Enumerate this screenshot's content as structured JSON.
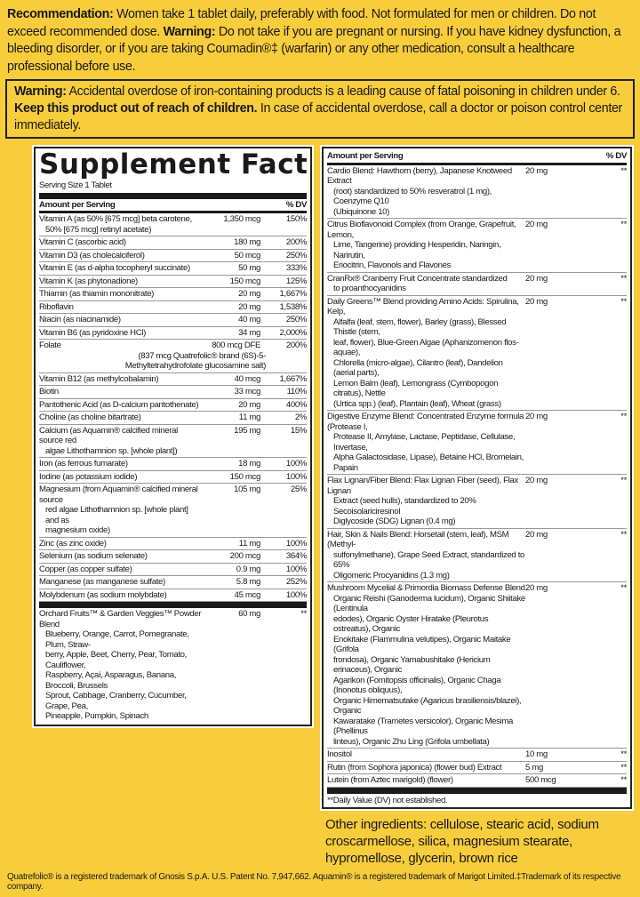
{
  "recommendation": {
    "label": "Recommendation:",
    "text": " Women take 1 tablet daily, preferably with food. Not formulated for men or children. Do not exceed recommended dose. ",
    "warning_label": "Warning:",
    "warning_text": " Do not take if you are pregnant or nursing. If you have kidney dysfunction, a bleeding disorder, or if you are taking Coumadin®‡ (warfarin) or any other medication, consult a healthcare professional before use."
  },
  "iron_warning": {
    "label": "Warning:",
    "text1": " Accidental overdose of iron-containing products is a leading cause of fatal poisoning in children under 6. ",
    "bold": "Keep this product out of reach of children.",
    "text2": " In case of accidental overdose, call a doctor or poison control center immediately."
  },
  "facts": {
    "title": "Supplement Facts",
    "serving": "Serving Size 1 Tablet",
    "amount_header": "Amount per Serving",
    "dv_header": "% DV"
  },
  "left_rows": [
    {
      "name": [
        "Vitamin A (as 50% [675 mcg] beta carotene,",
        "50% [675 mcg] retinyl acetate)"
      ],
      "amount": "1,350 mcg",
      "dv": "150%"
    },
    {
      "name": [
        "Vitamin C (ascorbic acid)"
      ],
      "amount": "180 mg",
      "dv": "200%"
    },
    {
      "name": [
        "Vitamin D3 (as cholecalciferol)"
      ],
      "amount": "50 mcg",
      "dv": "250%"
    },
    {
      "name": [
        "Vitamin E (as d-alpha tocopheryl succinate)"
      ],
      "amount": "50 mg",
      "dv": "333%"
    },
    {
      "name": [
        "Vitamin K (as phytonadione)"
      ],
      "amount": "150 mcg",
      "dv": "125%"
    },
    {
      "name": [
        "Thiamin (as thiamin mononitrate)"
      ],
      "amount": "20 mg",
      "dv": "1,667%"
    },
    {
      "name": [
        "Riboflavin"
      ],
      "amount": "20 mg",
      "dv": "1,538%"
    },
    {
      "name": [
        "Niacin (as niacinamide)"
      ],
      "amount": "40 mg",
      "dv": "250%"
    },
    {
      "name": [
        "Vitamin B6 (as pyridoxine HCl)"
      ],
      "amount": "34 mg",
      "dv": "2,000%"
    },
    {
      "name": [
        "Folate"
      ],
      "amount": "800 mcg DFE",
      "dv": "200%",
      "sub": [
        "(837 mcg Quatrefolic® brand (6S)-5-",
        "Methyltetrahydrofolate glucosamine salt)"
      ]
    },
    {
      "name": [
        "Vitamin B12 (as methylcobalamin)"
      ],
      "amount": "40 mcg",
      "dv": "1,667%"
    },
    {
      "name": [
        "Biotin"
      ],
      "amount": "33 mcg",
      "dv": "110%"
    },
    {
      "name": [
        "Pantothenic Acid (as D-calcium pantothenate)"
      ],
      "amount": "20 mg",
      "dv": "400%"
    },
    {
      "name": [
        "Choline (as choline bitartrate)"
      ],
      "amount": "11 mg",
      "dv": "2%"
    },
    {
      "name": [
        "Calcium (as Aquamin® calcified mineral source red",
        "algae Lithothamnion sp. [whole plant])"
      ],
      "amount": "195 mg",
      "dv": "15%"
    },
    {
      "name": [
        "Iron (as ferrous fumarate)"
      ],
      "amount": "18 mg",
      "dv": "100%"
    },
    {
      "name": [
        "Iodine (as potassium iodide)"
      ],
      "amount": "150 mcg",
      "dv": "100%"
    },
    {
      "name": [
        "Magnesium (from Aquamin® calcified mineral source",
        "red algae Lithothamnion sp. [whole plant] and as",
        "magnesium oxide)"
      ],
      "amount": "105 mg",
      "dv": "25%"
    },
    {
      "name": [
        "Zinc (as zinc oxide)"
      ],
      "amount": "11 mg",
      "dv": "100%"
    },
    {
      "name": [
        "Selenium (as sodium selenate)"
      ],
      "amount": "200 mcg",
      "dv": "364%"
    },
    {
      "name": [
        "Copper (as copper sulfate)"
      ],
      "amount": "0.9 mg",
      "dv": "100%"
    },
    {
      "name": [
        "Manganese (as manganese sulfate)"
      ],
      "amount": "5.8 mg",
      "dv": "252%"
    },
    {
      "name": [
        "Molybdenum (as sodium molybdate)"
      ],
      "amount": "45 mcg",
      "dv": "100%"
    }
  ],
  "left_blend": {
    "name": [
      "Orchard Fruits™ & Garden Veggies™ Powder Blend",
      "Blueberry, Orange, Carrot, Pomegranate, Plum, Straw-",
      "berry, Apple, Beet, Cherry, Pear, Tomato, Cauliflower,",
      "Raspberry, Açaí, Asparagus, Banana, Broccoli, Brussels",
      "Sprout, Cabbage, Cranberry, Cucumber, Grape, Pea,",
      "Pineapple, Pumpkin, Spinach"
    ],
    "amount": "60 mg",
    "dv": "**"
  },
  "right_rows": [
    {
      "name": [
        "Cardio Blend: Hawthorn (berry), Japanese Knotweed Extract",
        "(root) standardized to 50% resveratrol (1 mg), Coenzyme Q10",
        "(Ubiquinone 10)"
      ],
      "amount": "20 mg",
      "dv": "**"
    },
    {
      "name": [
        "Citrus Bioflavonoid Complex (from Orange, Grapefruit, Lemon,",
        "Lime, Tangerine) providing Hesperidin, Naringin, Narirutin,",
        "Eriocitrin, Flavonols and Flavones"
      ],
      "amount": "20 mg",
      "dv": "**"
    },
    {
      "name": [
        "CranRx® Cranberry Fruit Concentrate standardized",
        "to proanthocyanidins"
      ],
      "amount": "20 mg",
      "dv": "**"
    },
    {
      "name": [
        "Daily Greens™ Blend providing Amino Acids: Spirulina, Kelp,",
        "Alfalfa (leaf, stem, flower), Barley (grass), Blessed Thistle (stem,",
        "leaf, flower), Blue-Green Algae (Aphanizomenon flos-aquae),",
        "Chlorella (micro-algae), Cilantro (leaf), Dandelion (aerial parts),",
        "Lemon Balm (leaf), Lemongrass (Cymbopogon citratus), Nettle",
        "(Urtica spp.) (leaf), Plantain (leaf), Wheat (grass)"
      ],
      "amount": "20 mg",
      "dv": "**"
    },
    {
      "name": [
        "Digestive Enzyme Blend: Concentrated Enzyme formula (Protease I,",
        "Protease II, Amylase, Lactase, Peptidase, Cellulase, Invertase,",
        "Alpha Galactosidase, Lipase), Betaine HCl, Bromelain, Papain"
      ],
      "amount": "20 mg",
      "dv": "**"
    },
    {
      "name": [
        "Flax Lignan/Fiber Blend: Flax Lignan Fiber (seed), Flax Lignan",
        "Extract (seed hulls), standardized to 20% Secoisolariciresinol",
        "Diglycoside (SDG) Lignan (0.4 mg)"
      ],
      "amount": "20 mg",
      "dv": "**"
    },
    {
      "name": [
        "Hair, Skin & Nails Blend: Horsetail (stem, leaf), MSM (Methyl-",
        "sulfonylmethane), Grape Seed Extract, standardized to 65%",
        "Oligomeric Procyanidins (1.3 mg)"
      ],
      "amount": "20 mg",
      "dv": "**"
    },
    {
      "name": [
        "Mushroom Mycelial & Primordia Biomass Defense Blend",
        "Organic Reishi (Ganoderma lucidum), Organic Shiitake (Lentinula",
        "edodes), Organic Oyster Hiratake (Pleurotus ostreatus), Organic",
        "Enokitake (Flammulina velutipes), Organic Maitake (Grifola",
        "frondosa), Organic Yamabushitake (Hericium erinaceus), Organic",
        "Agarikon (Fomitopsis officinalis), Organic Chaga (Inonotus obliquus),",
        "Organic Himematsutake (Agaricus brasiliensis/blazei), Organic",
        "Kawaratake (Trametes versicolor), Organic Mesima (Phellinus",
        "linteus), Organic Zhu Ling (Grifola umbellata)"
      ],
      "amount": "20 mg",
      "dv": "**"
    },
    {
      "name": [
        "Inositol"
      ],
      "amount": "10 mg",
      "dv": "**"
    },
    {
      "name": [
        "Rutin (from Sophora japonica) (flower bud) Extract"
      ],
      "amount": "5 mg",
      "dv": "**"
    },
    {
      "name": [
        "Lutein (from Aztec marigold) (flower)"
      ],
      "amount": "500 mcg",
      "dv": "**"
    }
  ],
  "dv_note": "**Daily Value (DV) not established.",
  "other_ingredients": "Other ingredients: cellulose, stearic acid, sodium croscarmellose, silica, magnesium stearate, hypromellose, glycerin, brown rice",
  "footer": "Quatrefolic® is a registered trademark of Gnosis S.p.A. U.S. Patent No. 7,947,662. Aquamin® is a registered trademark of Marigot Limited.‡Trademark of its respective company."
}
